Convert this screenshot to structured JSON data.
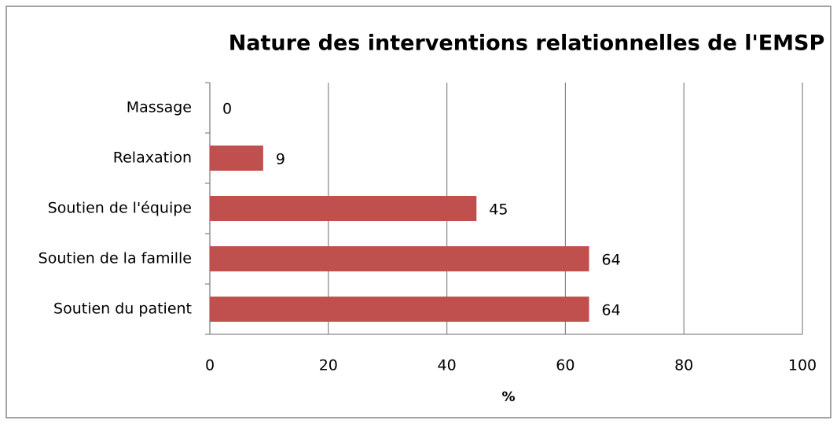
{
  "chart_data": {
    "type": "barh",
    "title": "Nature des interventions relationnelles de l'EMSP",
    "x_label": "%",
    "categories": [
      "Massage",
      "Relaxation",
      "Soutien de l'équipe",
      "Soutien de la famille",
      "Soutien du patient"
    ],
    "values": [
      0,
      9,
      45,
      64,
      64
    ],
    "color": "#c0504d",
    "xlim": [
      0,
      100
    ],
    "xticks": [
      0,
      20,
      40,
      60,
      80,
      100
    ],
    "grid": true
  }
}
